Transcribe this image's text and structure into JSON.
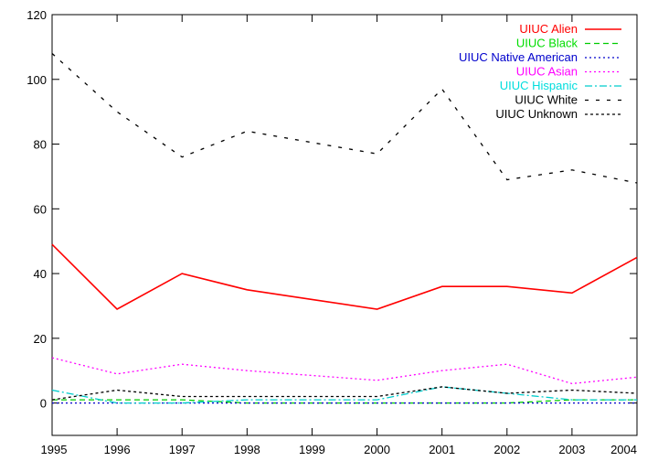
{
  "chart_data": {
    "type": "line",
    "x": [
      1995,
      1996,
      1997,
      1998,
      1999,
      2000,
      2001,
      2002,
      2003,
      2004
    ],
    "xlim": [
      1995,
      2004
    ],
    "ylim": [
      -10,
      120
    ],
    "x_ticks": [
      "1995",
      "1996",
      "1997",
      "1998",
      "1999",
      "2000",
      "2001",
      "2002",
      "2003",
      "2004"
    ],
    "y_ticks": [
      "0",
      "20",
      "40",
      "60",
      "80",
      "100",
      "120"
    ],
    "grid": false,
    "legend_position": "top-right",
    "series": [
      {
        "name": "UIUC Alien",
        "color": "#ff0000",
        "dash": "solid",
        "values": [
          49,
          29,
          40,
          35,
          32,
          29,
          36,
          36,
          34,
          45
        ]
      },
      {
        "name": "UIUC Black",
        "color": "#00cc00",
        "dash": "dashed",
        "values": [
          1,
          1,
          1,
          0,
          0,
          0,
          0,
          0,
          1,
          1
        ]
      },
      {
        "name": "UIUC Native American",
        "color": "#0000cc",
        "dash": "dotted",
        "values": [
          0,
          0,
          0,
          0,
          0,
          0,
          0,
          0,
          0,
          0
        ]
      },
      {
        "name": "UIUC Asian",
        "color": "#ff00ff",
        "dash": "dotted",
        "values": [
          14,
          9,
          12,
          10,
          8.5,
          7,
          10,
          12,
          6,
          8
        ]
      },
      {
        "name": "UIUC Hispanic",
        "color": "#00cccc",
        "dash": "dashdot",
        "values": [
          4,
          0,
          0,
          1,
          1,
          1,
          5,
          3,
          1,
          1
        ]
      },
      {
        "name": "UIUC White",
        "color": "#000000",
        "dash": "loose",
        "values": [
          108,
          90,
          76,
          84,
          80.5,
          77,
          97,
          69,
          72,
          68
        ]
      },
      {
        "name": "UIUC Unknown",
        "color": "#000000",
        "dash": "dense",
        "values": [
          1,
          4,
          2,
          2,
          2,
          2,
          5,
          3,
          4,
          3
        ]
      }
    ]
  }
}
